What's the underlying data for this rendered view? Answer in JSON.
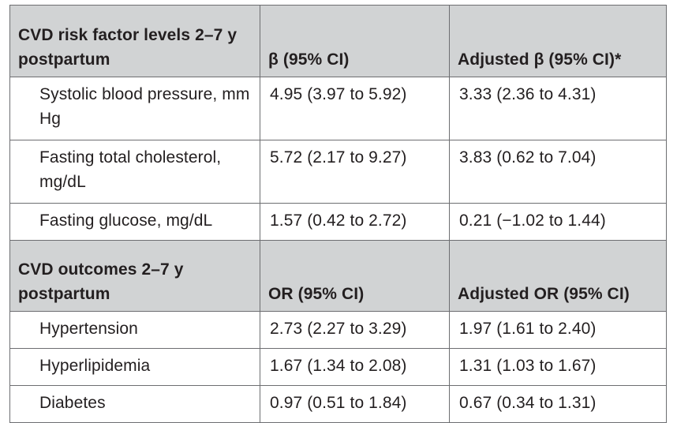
{
  "table": {
    "section1": {
      "header": [
        "CVD risk factor levels 2–7 y postpartum",
        "β (95% CI)",
        "Adjusted β (95% CI)*"
      ],
      "rows": [
        [
          "Systolic blood pressure, mm Hg",
          "4.95 (3.97 to 5.92)",
          "3.33 (2.36 to 4.31)"
        ],
        [
          "Fasting total cholesterol, mg/dL",
          "5.72 (2.17 to 9.27)",
          "3.83 (0.62 to 7.04)"
        ],
        [
          "Fasting glucose, mg/dL",
          "1.57 (0.42 to 2.72)",
          "0.21 (−1.02 to 1.44)"
        ]
      ]
    },
    "section2": {
      "header": [
        "CVD outcomes 2–7 y postpartum",
        "OR (95% CI)",
        "Adjusted OR (95% CI)"
      ],
      "rows": [
        [
          "Hypertension",
          "2.73 (2.27 to 3.29)",
          "1.97 (1.61 to 2.40)"
        ],
        [
          "Hyperlipidemia",
          "1.67 (1.34 to 2.08)",
          "1.31 (1.03 to 1.67)"
        ],
        [
          "Diabetes",
          "0.97 (0.51 to 1.84)",
          "0.67 (0.34 to 1.31)"
        ]
      ]
    }
  }
}
